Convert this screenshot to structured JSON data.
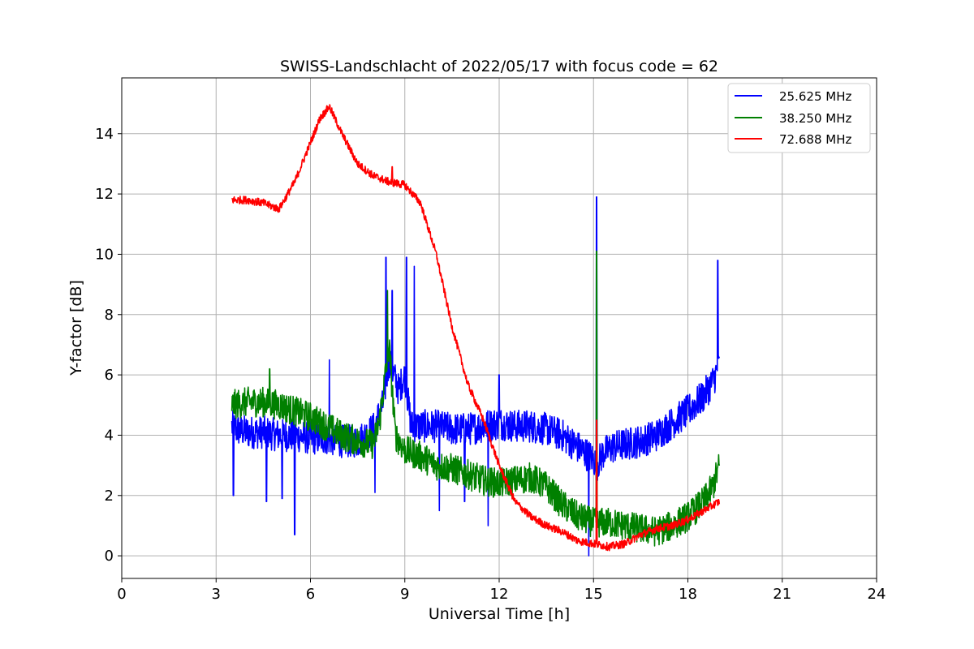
{
  "chart_data": {
    "type": "line",
    "title": "SWISS-Landschlacht of 2022/05/17 with focus code = 62",
    "xlabel": "Universal Time [h]",
    "ylabel": "Y-factor [dB]",
    "xlim": [
      0,
      24
    ],
    "ylim": [
      -0.75,
      15.85
    ],
    "xticks": [
      0,
      3,
      6,
      9,
      12,
      15,
      18,
      21,
      24
    ],
    "yticks": [
      0,
      2,
      4,
      6,
      8,
      10,
      12,
      14
    ],
    "grid": true,
    "legend_position": "top-right",
    "series": [
      {
        "name": "25.625 MHz",
        "color": "#0000ff",
        "x": [
          3.5,
          3.6,
          4.0,
          4.5,
          5.0,
          5.5,
          6.0,
          6.5,
          7.0,
          7.5,
          8.0,
          8.3,
          8.5,
          8.8,
          9.0,
          9.2,
          9.5,
          10.0,
          10.5,
          11.0,
          11.5,
          12.0,
          12.5,
          13.0,
          13.5,
          14.0,
          14.5,
          15.0,
          15.1,
          15.3,
          15.6,
          16.0,
          16.5,
          17.0,
          17.5,
          18.0,
          18.5,
          18.8,
          19.0
        ],
        "y": [
          4.3,
          4.2,
          4.1,
          4.1,
          4.0,
          4.0,
          3.9,
          3.9,
          3.8,
          3.8,
          4.2,
          5.0,
          6.5,
          5.5,
          6.0,
          4.3,
          4.3,
          4.3,
          4.2,
          4.2,
          4.3,
          4.4,
          4.3,
          4.3,
          4.2,
          4.0,
          3.6,
          3.2,
          3.0,
          3.4,
          3.6,
          3.7,
          3.8,
          4.0,
          4.4,
          4.8,
          5.3,
          5.8,
          6.3
        ],
        "spikes": [
          [
            3.55,
            2.0
          ],
          [
            4.6,
            1.8
          ],
          [
            5.1,
            1.9
          ],
          [
            5.5,
            0.7
          ],
          [
            6.6,
            6.5
          ],
          [
            8.05,
            2.1
          ],
          [
            8.4,
            9.9
          ],
          [
            8.6,
            8.8
          ],
          [
            9.05,
            9.9
          ],
          [
            9.3,
            9.6
          ],
          [
            10.1,
            1.5
          ],
          [
            10.9,
            1.8
          ],
          [
            11.65,
            1.0
          ],
          [
            12.0,
            6.0
          ],
          [
            14.85,
            0.0
          ],
          [
            15.1,
            11.9
          ],
          [
            18.95,
            9.8
          ]
        ]
      },
      {
        "name": "38.250 MHz",
        "color": "#008000",
        "x": [
          3.5,
          4.0,
          4.5,
          5.0,
          5.5,
          6.0,
          6.5,
          7.0,
          7.5,
          8.0,
          8.2,
          8.5,
          8.7,
          9.0,
          9.5,
          10.0,
          10.5,
          11.0,
          11.5,
          12.0,
          12.5,
          13.0,
          13.5,
          14.0,
          14.5,
          15.0,
          15.5,
          16.0,
          16.5,
          17.0,
          17.5,
          18.0,
          18.5,
          18.8,
          19.0
        ],
        "y": [
          5.0,
          5.1,
          5.1,
          5.0,
          4.8,
          4.6,
          4.3,
          4.0,
          3.8,
          3.7,
          4.5,
          7.0,
          4.0,
          3.5,
          3.3,
          3.0,
          2.9,
          2.7,
          2.5,
          2.4,
          2.5,
          2.6,
          2.3,
          1.7,
          1.3,
          1.1,
          1.1,
          1.0,
          0.9,
          0.8,
          1.0,
          1.3,
          1.8,
          2.3,
          3.0
        ],
        "spikes": [
          [
            4.7,
            6.2
          ],
          [
            8.45,
            8.8
          ],
          [
            15.1,
            10.1
          ]
        ]
      },
      {
        "name": "72.688 MHz",
        "color": "#ff0000",
        "x": [
          3.5,
          4.0,
          4.5,
          5.0,
          5.5,
          6.0,
          6.3,
          6.6,
          7.0,
          7.5,
          8.0,
          8.5,
          9.0,
          9.5,
          10.0,
          10.5,
          11.0,
          11.5,
          12.0,
          12.5,
          13.0,
          13.5,
          14.0,
          14.5,
          15.0,
          15.5,
          16.0,
          16.5,
          17.0,
          17.5,
          18.0,
          18.5,
          19.0
        ],
        "y": [
          11.8,
          11.8,
          11.7,
          11.5,
          12.4,
          13.7,
          14.5,
          14.9,
          14.0,
          13.0,
          12.6,
          12.4,
          12.3,
          11.7,
          10.0,
          7.6,
          5.7,
          4.5,
          3.0,
          1.8,
          1.3,
          1.0,
          0.8,
          0.5,
          0.4,
          0.3,
          0.4,
          0.7,
          0.9,
          1.0,
          1.2,
          1.5,
          1.8
        ],
        "spikes": [
          [
            8.6,
            12.9
          ],
          [
            15.1,
            4.5
          ]
        ]
      }
    ]
  }
}
